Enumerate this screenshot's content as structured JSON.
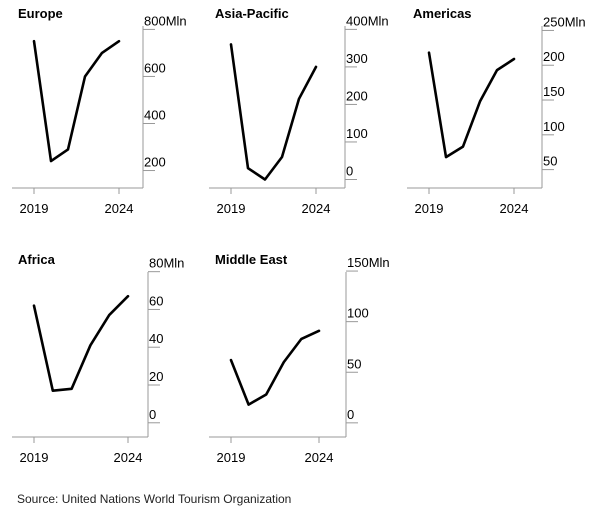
{
  "chart_data": [
    {
      "type": "line",
      "title": "Europe",
      "x": [
        2019,
        2020,
        2021,
        2022,
        2023,
        2024
      ],
      "xticks": [
        "2019",
        "2024"
      ],
      "series": [
        {
          "values": [
            750,
            240,
            290,
            600,
            700,
            750
          ]
        }
      ],
      "ylim": [
        130,
        840
      ],
      "yticks": [
        {
          "value": 800,
          "label": "800Mln"
        },
        {
          "value": 600,
          "label": "600"
        },
        {
          "value": 400,
          "label": "400"
        },
        {
          "value": 200,
          "label": "200"
        }
      ],
      "grid": false,
      "axis_lines": true
    },
    {
      "type": "line",
      "title": "Asia-Pacific",
      "x": [
        2019,
        2020,
        2021,
        2022,
        2023,
        2024
      ],
      "xticks": [
        "2019",
        "2024"
      ],
      "series": [
        {
          "values": [
            360,
            30,
            0,
            60,
            215,
            300
          ]
        }
      ],
      "ylim": [
        -20,
        425
      ],
      "yticks": [
        {
          "value": 400,
          "label": "400Mln"
        },
        {
          "value": 300,
          "label": "300"
        },
        {
          "value": 200,
          "label": "200"
        },
        {
          "value": 100,
          "label": "100"
        },
        {
          "value": 0,
          "label": "0"
        }
      ],
      "grid": false,
      "axis_lines": true
    },
    {
      "type": "line",
      "title": "Americas",
      "x": [
        2019,
        2020,
        2021,
        2022,
        2023,
        2024
      ],
      "xticks": [
        "2019",
        "2024"
      ],
      "series": [
        {
          "values": [
            218,
            68,
            83,
            148,
            193,
            209
          ]
        }
      ],
      "ylim": [
        25,
        265
      ],
      "yticks": [
        {
          "value": 250,
          "label": "250Mln"
        },
        {
          "value": 200,
          "label": "200"
        },
        {
          "value": 150,
          "label": "150"
        },
        {
          "value": 100,
          "label": "100"
        },
        {
          "value": 50,
          "label": "50"
        }
      ],
      "grid": false,
      "axis_lines": true
    },
    {
      "type": "line",
      "title": "Africa",
      "x": [
        2019,
        2020,
        2021,
        2022,
        2023,
        2024
      ],
      "xticks": [
        "2019",
        "2024"
      ],
      "series": [
        {
          "values": [
            62,
            17,
            18,
            41,
            57,
            67
          ]
        }
      ],
      "ylim": [
        -7,
        83
      ],
      "yticks": [
        {
          "value": 80,
          "label": "80Mln"
        },
        {
          "value": 60,
          "label": "60"
        },
        {
          "value": 40,
          "label": "40"
        },
        {
          "value": 20,
          "label": "20"
        },
        {
          "value": 0,
          "label": "0"
        }
      ],
      "grid": false,
      "axis_lines": true
    },
    {
      "type": "line",
      "title": "Middle East",
      "x": [
        2019,
        2020,
        2021,
        2022,
        2023,
        2024
      ],
      "xticks": [
        "2019",
        "2024"
      ],
      "series": [
        {
          "values": [
            62,
            18,
            28,
            60,
            83,
            91
          ]
        }
      ],
      "ylim": [
        -13,
        155
      ],
      "yticks": [
        {
          "value": 150,
          "label": "150Mln"
        },
        {
          "value": 100,
          "label": "100"
        },
        {
          "value": 50,
          "label": "50"
        },
        {
          "value": 0,
          "label": "0"
        }
      ],
      "grid": false,
      "axis_lines": true
    }
  ],
  "source": "Source: United Nations World Tourism Organization"
}
